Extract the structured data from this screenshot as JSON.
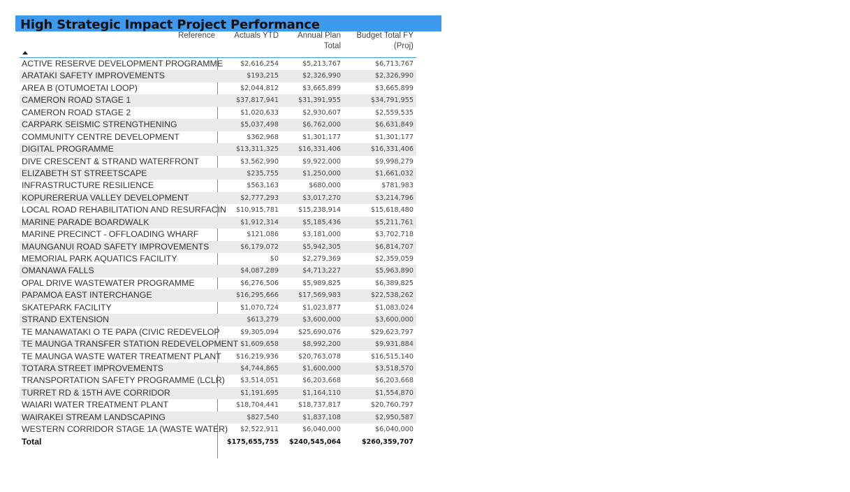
{
  "title": "High Strategic Impact Project Performance",
  "columns": {
    "reference": "Reference",
    "actuals": "Actuals YTD",
    "annual_line1": "Annual Plan",
    "annual_line2": "Total",
    "budget_line1": "Budget Total FY",
    "budget_line2": "(Proj)"
  },
  "sort_icon": "sort-ascending-icon",
  "colors": {
    "accent": "#3d9aef",
    "row_alt": "#eaeaea"
  },
  "rows": [
    {
      "name": "ACTIVE RESERVE DEVELOPMENT PROGRAMME",
      "actuals": "$2,616,254",
      "annual": "$5,213,767",
      "budget": "$6,713,767"
    },
    {
      "name": "ARATAKI SAFETY IMPROVEMENTS",
      "actuals": "$193,215",
      "annual": "$2,326,990",
      "budget": "$2,326,990"
    },
    {
      "name": "AREA B (OTUMOETAI LOOP)",
      "actuals": "$2,044,812",
      "annual": "$3,665,899",
      "budget": "$3,665,899"
    },
    {
      "name": "CAMERON ROAD STAGE 1",
      "actuals": "$37,817,941",
      "annual": "$31,391,955",
      "budget": "$34,791,955"
    },
    {
      "name": "CAMERON ROAD STAGE 2",
      "actuals": "$1,020,633",
      "annual": "$2,930,607",
      "budget": "$2,559,535"
    },
    {
      "name": "CARPARK SEISMIC STRENGTHENING",
      "actuals": "$5,037,498",
      "annual": "$6,762,000",
      "budget": "$6,631,849"
    },
    {
      "name": "COMMUNITY CENTRE DEVELOPMENT",
      "actuals": "$362,968",
      "annual": "$1,301,177",
      "budget": "$1,301,177"
    },
    {
      "name": "DIGITAL PROGRAMME",
      "actuals": "$13,311,325",
      "annual": "$16,331,406",
      "budget": "$16,331,406"
    },
    {
      "name": "DIVE CRESCENT & STRAND WATERFRONT",
      "actuals": "$3,562,990",
      "annual": "$9,922,000",
      "budget": "$9,998,279"
    },
    {
      "name": "ELIZABETH ST STREETSCAPE",
      "actuals": "$235,755",
      "annual": "$1,250,000",
      "budget": "$1,661,032"
    },
    {
      "name": "INFRASTRUCTURE RESILIENCE",
      "actuals": "$563,163",
      "annual": "$680,000",
      "budget": "$781,983"
    },
    {
      "name": "KOPURERERUA VALLEY DEVELOPMENT",
      "actuals": "$2,777,293",
      "annual": "$3,017,270",
      "budget": "$3,214,796"
    },
    {
      "name": "LOCAL ROAD REHABILITATION AND RESURFACIN",
      "actuals": "$10,915,781",
      "annual": "$15,238,914",
      "budget": "$15,618,480"
    },
    {
      "name": "MARINE PARADE BOARDWALK",
      "actuals": "$1,912,314",
      "annual": "$5,185,436",
      "budget": "$5,211,761"
    },
    {
      "name": "MARINE PRECINCT - OFFLOADING WHARF",
      "actuals": "$121,086",
      "annual": "$3,181,000",
      "budget": "$3,702,718"
    },
    {
      "name": "MAUNGANUI ROAD SAFETY IMPROVEMENTS",
      "actuals": "$6,179,072",
      "annual": "$5,942,305",
      "budget": "$6,814,707"
    },
    {
      "name": "MEMORIAL PARK AQUATICS FACILITY",
      "actuals": "$0",
      "annual": "$2,279,369",
      "budget": "$2,359,059"
    },
    {
      "name": "OMANAWA FALLS",
      "actuals": "$4,087,289",
      "annual": "$4,713,227",
      "budget": "$5,963,890"
    },
    {
      "name": "OPAL DRIVE WASTEWATER PROGRAMME",
      "actuals": "$6,276,506",
      "annual": "$5,989,825",
      "budget": "$6,389,825"
    },
    {
      "name": "PAPAMOA EAST INTERCHANGE",
      "actuals": "$16,295,666",
      "annual": "$17,569,983",
      "budget": "$22,538,262"
    },
    {
      "name": "SKATEPARK FACILITY",
      "actuals": "$1,070,724",
      "annual": "$1,023,877",
      "budget": "$1,083,024"
    },
    {
      "name": "STRAND EXTENSION",
      "actuals": "$613,279",
      "annual": "$3,600,000",
      "budget": "$3,600,000"
    },
    {
      "name": "TE MANAWATAKI O TE PAPA (CIVIC REDEVELOP",
      "actuals": "$9,305,094",
      "annual": "$25,690,076",
      "budget": "$29,623,797"
    },
    {
      "name": "TE MAUNGA TRANSFER STATION REDEVELOPMENT",
      "actuals": "$1,609,658",
      "annual": "$8,992,200",
      "budget": "$9,931,884"
    },
    {
      "name": "TE MAUNGA WASTE WATER TREATMENT PLANT",
      "actuals": "$16,219,936",
      "annual": "$20,763,078",
      "budget": "$16,515,140"
    },
    {
      "name": "TOTARA STREET IMPROVEMENTS",
      "actuals": "$4,744,865",
      "annual": "$1,600,000",
      "budget": "$3,518,570"
    },
    {
      "name": "TRANSPORTATION SAFETY PROGRAMME (LCLR)",
      "actuals": "$3,514,051",
      "annual": "$6,203,668",
      "budget": "$6,203,668"
    },
    {
      "name": "TURRET RD & 15TH AVE CORRIDOR",
      "actuals": "$1,191,695",
      "annual": "$1,164,110",
      "budget": "$1,554,870"
    },
    {
      "name": "WAIARI WATER TREATMENT PLANT",
      "actuals": "$18,704,441",
      "annual": "$18,737,817",
      "budget": "$20,760,797"
    },
    {
      "name": "WAIRAKEI STREAM LANDSCAPING",
      "actuals": "$827,540",
      "annual": "$1,837,108",
      "budget": "$2,950,587"
    },
    {
      "name": "WESTERN CORRIDOR STAGE 1A (WASTE WATER)",
      "actuals": "$2,522,911",
      "annual": "$6,040,000",
      "budget": "$6,040,000"
    }
  ],
  "total": {
    "name": "Total",
    "actuals": "$175,655,755",
    "annual": "$240,545,064",
    "budget": "$260,359,707"
  }
}
